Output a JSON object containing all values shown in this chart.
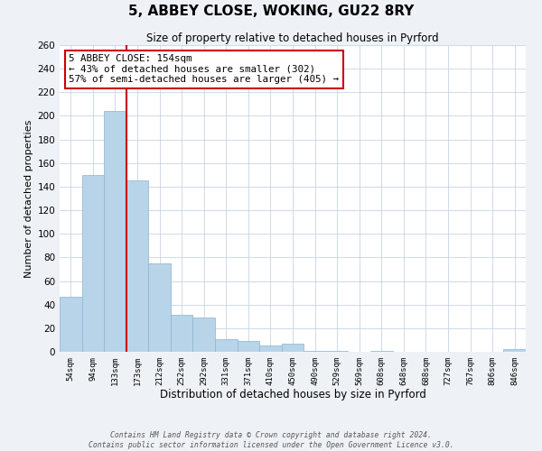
{
  "title": "5, ABBEY CLOSE, WOKING, GU22 8RY",
  "subtitle": "Size of property relative to detached houses in Pyrford",
  "xlabel": "Distribution of detached houses by size in Pyrford",
  "ylabel": "Number of detached properties",
  "bar_labels": [
    "54sqm",
    "94sqm",
    "133sqm",
    "173sqm",
    "212sqm",
    "252sqm",
    "292sqm",
    "331sqm",
    "371sqm",
    "410sqm",
    "450sqm",
    "490sqm",
    "529sqm",
    "569sqm",
    "608sqm",
    "648sqm",
    "688sqm",
    "727sqm",
    "767sqm",
    "806sqm",
    "846sqm"
  ],
  "bar_values": [
    47,
    150,
    204,
    145,
    75,
    31,
    29,
    11,
    9,
    5,
    7,
    1,
    1,
    0,
    1,
    0,
    0,
    0,
    0,
    0,
    2
  ],
  "bar_color": "#b8d4e8",
  "bar_edge_color": "#8ab4d0",
  "vline_color": "#cc0000",
  "annotation_title": "5 ABBEY CLOSE: 154sqm",
  "annotation_line1": "← 43% of detached houses are smaller (302)",
  "annotation_line2": "57% of semi-detached houses are larger (405) →",
  "annotation_box_color": "#ffffff",
  "annotation_box_edge": "#cc0000",
  "ylim": [
    0,
    260
  ],
  "yticks": [
    0,
    20,
    40,
    60,
    80,
    100,
    120,
    140,
    160,
    180,
    200,
    220,
    240,
    260
  ],
  "footer1": "Contains HM Land Registry data © Crown copyright and database right 2024.",
  "footer2": "Contains public sector information licensed under the Open Government Licence v3.0.",
  "bg_color": "#eef2f7",
  "plot_bg_color": "#ffffff"
}
